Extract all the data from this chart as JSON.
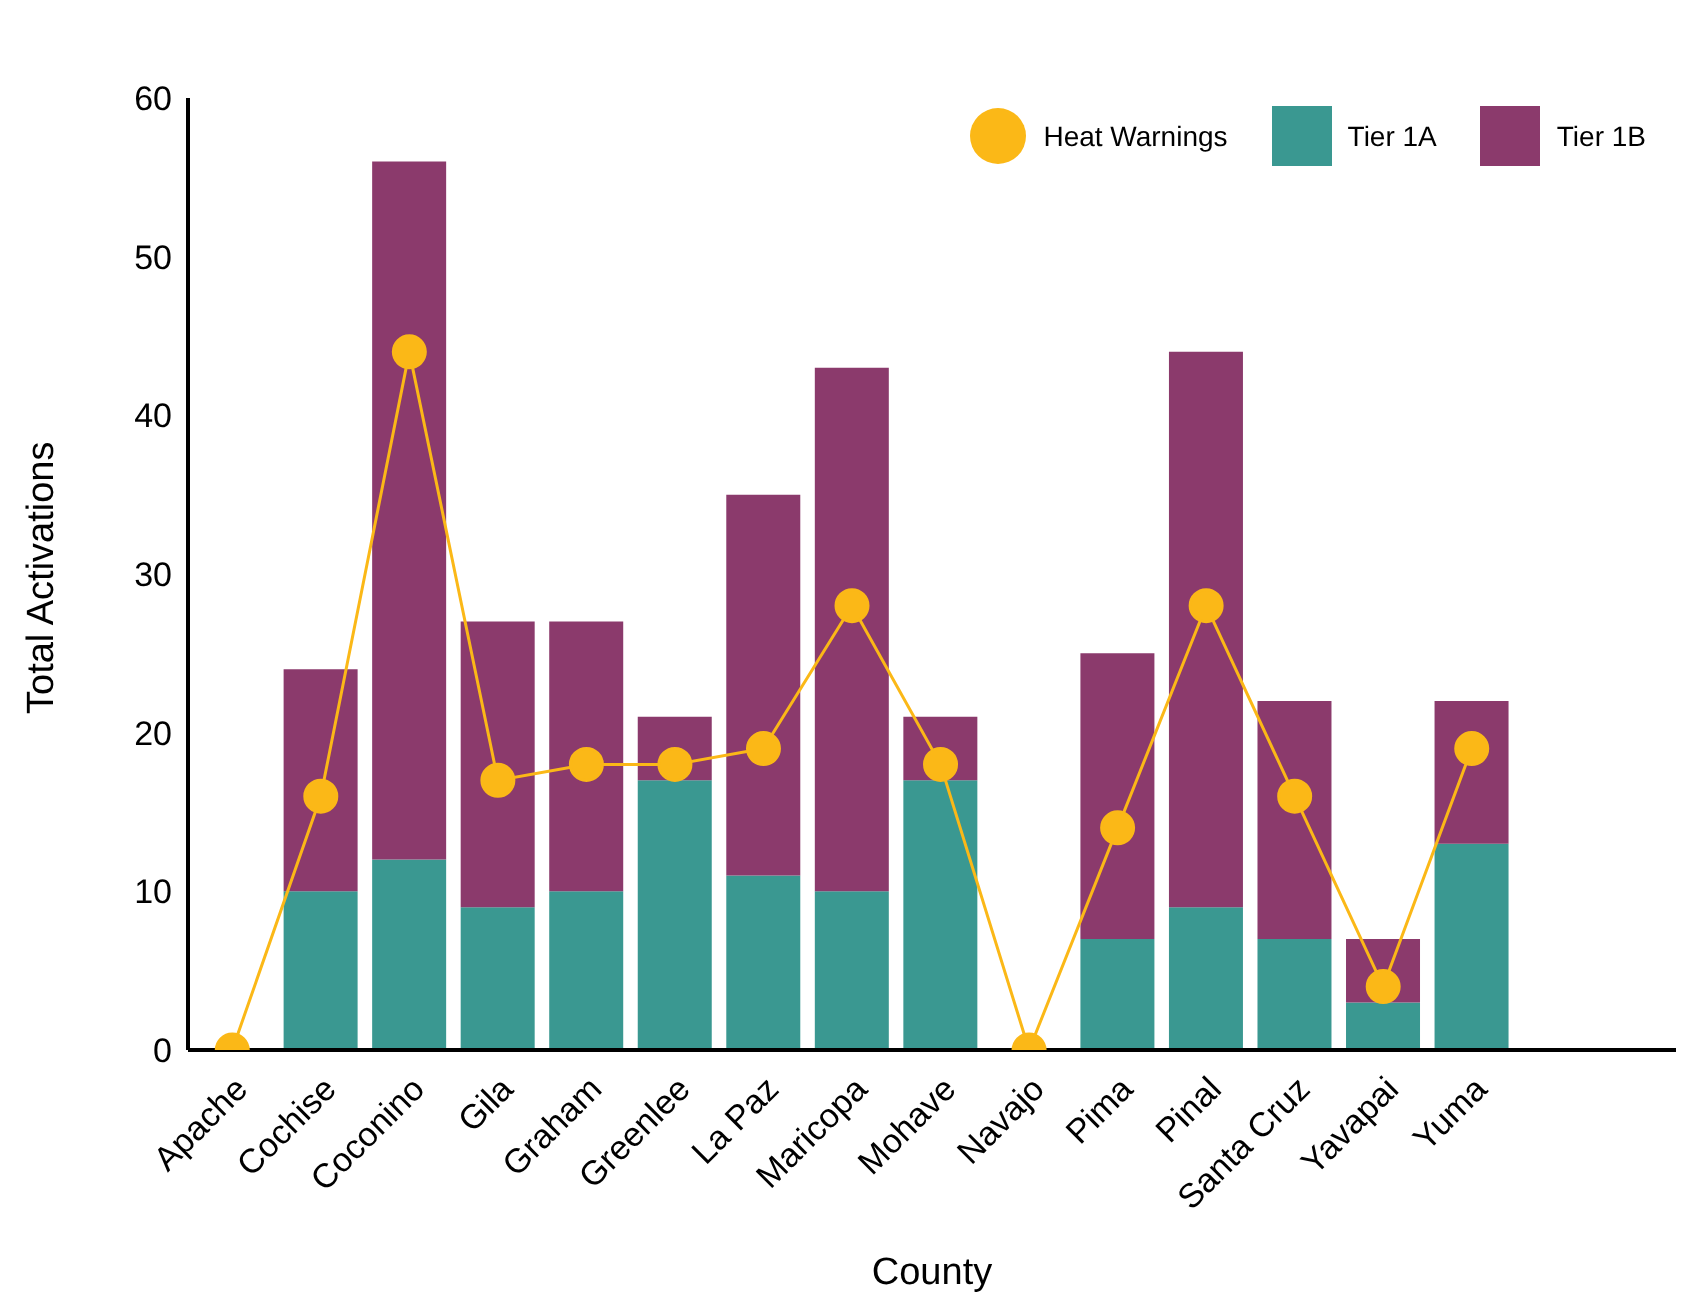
{
  "chart_data": {
    "type": "bar",
    "stacked": true,
    "xlabel": "County",
    "ylabel": "Total Activations",
    "categories": [
      "Apache",
      "Cochise",
      "Coconino",
      "Gila",
      "Graham",
      "Greenlee",
      "La Paz",
      "Maricopa",
      "Mohave",
      "Navajo",
      "Pima",
      "Pinal",
      "Santa Cruz",
      "Yavapai",
      "Yuma"
    ],
    "series": [
      {
        "name": "Heat Warnings",
        "type": "line",
        "marker": "circle",
        "color": "#fbb817",
        "values": [
          0,
          16,
          44,
          17,
          18,
          18,
          19,
          28,
          18,
          0,
          14,
          28,
          16,
          4,
          19
        ]
      },
      {
        "name": "Tier 1A",
        "color": "#3a9891",
        "values": [
          0,
          10,
          12,
          9,
          10,
          17,
          11,
          10,
          17,
          0,
          7,
          9,
          7,
          3,
          13
        ]
      },
      {
        "name": "Tier 1B",
        "color": "#8b3a6c",
        "values": [
          0,
          14,
          44,
          18,
          17,
          4,
          24,
          33,
          4,
          0,
          18,
          35,
          15,
          4,
          9
        ]
      }
    ],
    "ylim": [
      0,
      60
    ],
    "yticks": [
      0,
      10,
      20,
      30,
      40,
      50,
      60
    ],
    "grid": false,
    "legend": "top right"
  }
}
